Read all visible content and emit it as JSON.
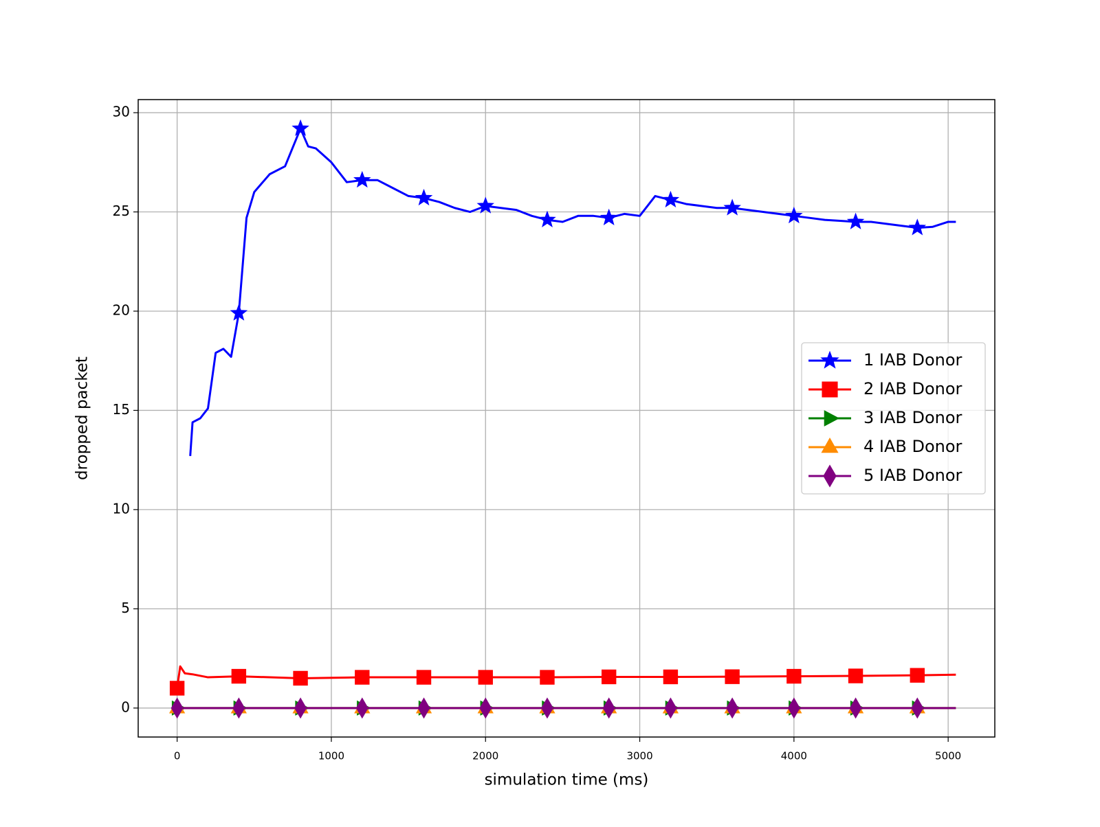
{
  "chart_data": {
    "type": "line",
    "x_label": "simulation time (ms)",
    "y_label": "dropped packet",
    "xlim": [
      -252.5,
      5302.5
    ],
    "ylim": [
      -1.46,
      30.66
    ],
    "xticks": [
      0,
      1000,
      2000,
      3000,
      4000,
      5000
    ],
    "yticks": [
      0,
      5,
      10,
      15,
      20,
      25,
      30
    ],
    "grid": true,
    "legend": "center right",
    "markevery": 400,
    "series": [
      {
        "name": "1 IAB Donor",
        "color": "#0000ff",
        "marker": "star",
        "x": [
          85,
          100,
          150,
          200,
          250,
          300,
          350,
          400,
          450,
          500,
          600,
          700,
          800,
          850,
          900,
          1000,
          1100,
          1200,
          1300,
          1400,
          1500,
          1600,
          1700,
          1800,
          1900,
          2000,
          2100,
          2200,
          2300,
          2400,
          2500,
          2600,
          2700,
          2800,
          2900,
          3000,
          3100,
          3200,
          3300,
          3400,
          3500,
          3600,
          3700,
          3800,
          3900,
          4000,
          4100,
          4200,
          4300,
          4400,
          4500,
          4600,
          4700,
          4800,
          4900,
          5000,
          5050
        ],
        "values": [
          12.7,
          14.4,
          14.6,
          15.1,
          17.9,
          18.1,
          17.7,
          19.9,
          24.7,
          26.0,
          26.9,
          27.3,
          29.2,
          28.3,
          28.2,
          27.5,
          26.5,
          26.6,
          26.6,
          26.2,
          25.8,
          25.7,
          25.5,
          25.2,
          25.0,
          25.3,
          25.2,
          25.1,
          24.8,
          24.6,
          24.5,
          24.8,
          24.8,
          24.7,
          24.9,
          24.8,
          25.8,
          25.6,
          25.4,
          25.3,
          25.2,
          25.2,
          25.1,
          25.0,
          24.9,
          24.8,
          24.7,
          24.6,
          24.55,
          24.5,
          24.5,
          24.4,
          24.3,
          24.2,
          24.25,
          24.5,
          24.5
        ]
      },
      {
        "name": "2 IAB Donor",
        "color": "#ff0000",
        "marker": "square",
        "x": [
          0,
          20,
          50,
          100,
          200,
          400,
          800,
          1200,
          1600,
          2000,
          2400,
          2800,
          3200,
          3600,
          4000,
          4400,
          4800,
          5050
        ],
        "values": [
          1.0,
          2.1,
          1.75,
          1.7,
          1.55,
          1.6,
          1.5,
          1.55,
          1.55,
          1.55,
          1.55,
          1.57,
          1.57,
          1.58,
          1.6,
          1.62,
          1.65,
          1.68
        ]
      },
      {
        "name": "3 IAB Donor",
        "color": "#008000",
        "marker": "triangle-right",
        "x": [
          0,
          400,
          800,
          1200,
          1600,
          2000,
          2400,
          2800,
          3200,
          3600,
          4000,
          4400,
          4800,
          5050
        ],
        "values": [
          0,
          0,
          0,
          0,
          0,
          0,
          0,
          0,
          0,
          0,
          0,
          0,
          0,
          0
        ]
      },
      {
        "name": "4 IAB Donor",
        "color": "#ff8c00",
        "marker": "triangle-up",
        "x": [
          0,
          400,
          800,
          1200,
          1600,
          2000,
          2400,
          2800,
          3200,
          3600,
          4000,
          4400,
          4800,
          5050
        ],
        "values": [
          0,
          0,
          0,
          0,
          0,
          0,
          0,
          0,
          0,
          0,
          0,
          0,
          0,
          0
        ]
      },
      {
        "name": "5 IAB Donor",
        "color": "#800080",
        "marker": "diamond",
        "x": [
          0,
          400,
          800,
          1200,
          1600,
          2000,
          2400,
          2800,
          3200,
          3600,
          4000,
          4400,
          4800,
          5050
        ],
        "values": [
          0,
          0,
          0,
          0,
          0,
          0,
          0,
          0,
          0,
          0,
          0,
          0,
          0,
          0
        ]
      }
    ]
  }
}
